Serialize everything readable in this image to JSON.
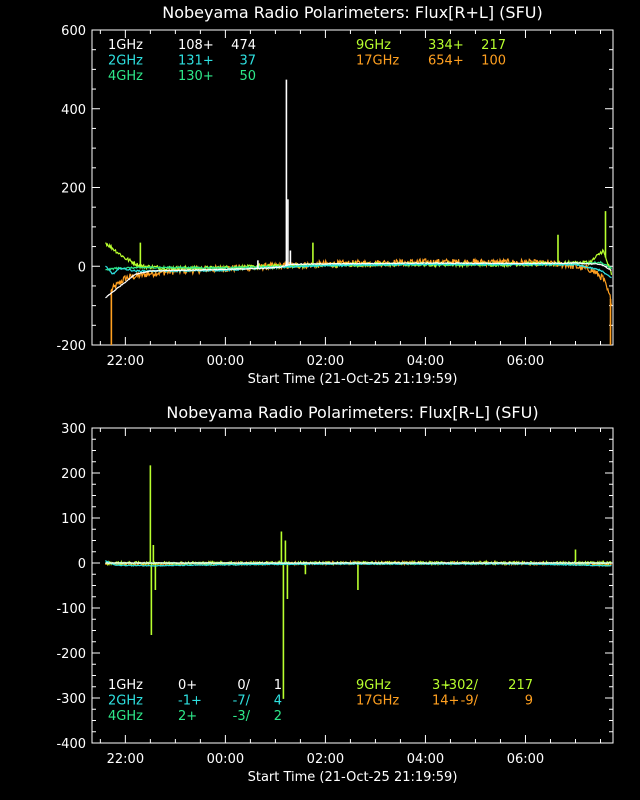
{
  "chart_data": [
    {
      "type": "line",
      "title": "Nobeyama Radio Polarimeters: Flux[R+L] (SFU)",
      "xlabel": "Start Time (21-Oct-25 21:19:59)",
      "ylabel": "",
      "ylim": [
        -200,
        600
      ],
      "yticks": [
        {
          "v": -200,
          "label": "-200"
        },
        {
          "v": 0,
          "label": "0"
        },
        {
          "v": 200,
          "label": "200"
        },
        {
          "v": 400,
          "label": "400"
        },
        {
          "v": 600,
          "label": "600"
        }
      ],
      "xlim_hours": [
        21.333,
        31.75
      ],
      "xticks": [
        {
          "h": 22,
          "label": "22:00"
        },
        {
          "h": 24,
          "label": "00:00"
        },
        {
          "h": 26,
          "label": "02:00"
        },
        {
          "h": 28,
          "label": "04:00"
        },
        {
          "h": 30,
          "label": "06:00"
        }
      ],
      "legend_rows": [
        {
          "row": 0,
          "items": [
            {
              "band": "1GHz",
              "base": "108+",
              "peak": "474",
              "color": "#ffffff",
              "col": "left"
            },
            {
              "band": "9GHz",
              "base": "334+",
              "peak": "217",
              "color": "#b8ff2e",
              "col": "right"
            }
          ]
        },
        {
          "row": 1,
          "items": [
            {
              "band": "2GHz",
              "base": "131+",
              "peak": "37",
              "color": "#2ee0e0",
              "col": "left"
            },
            {
              "band": "17GHz",
              "base": "654+",
              "peak": "100",
              "color": "#ffa020",
              "col": "right"
            }
          ]
        },
        {
          "row": 2,
          "items": [
            {
              "band": "4GHz",
              "base": "130+",
              "peak": "50",
              "color": "#2ee88a",
              "col": "left"
            }
          ]
        }
      ],
      "series": [
        {
          "name": "17GHz",
          "color": "#ffa020",
          "noise": 9,
          "points": [
            [
              21.72,
              -60
            ],
            [
              22.0,
              -30
            ],
            [
              22.5,
              -18
            ],
            [
              23.0,
              -12
            ],
            [
              24.0,
              -6
            ],
            [
              25.0,
              0
            ],
            [
              26.0,
              5
            ],
            [
              27.0,
              8
            ],
            [
              28.0,
              10
            ],
            [
              29.0,
              10
            ],
            [
              30.0,
              9
            ],
            [
              30.8,
              4
            ],
            [
              31.3,
              -8
            ],
            [
              31.55,
              -30
            ],
            [
              31.72,
              -90
            ]
          ],
          "spikes": [
            [
              21.72,
              -210
            ],
            [
              31.7,
              -210
            ]
          ]
        },
        {
          "name": "9GHz",
          "color": "#b8ff2e",
          "noise": 5,
          "points": [
            [
              21.6,
              60
            ],
            [
              21.8,
              40
            ],
            [
              22.0,
              20
            ],
            [
              22.3,
              0
            ],
            [
              22.8,
              -4
            ],
            [
              23.5,
              -5
            ],
            [
              24.5,
              -2
            ],
            [
              25.5,
              2
            ],
            [
              26.5,
              4
            ],
            [
              27.5,
              5
            ],
            [
              28.5,
              5
            ],
            [
              29.5,
              5
            ],
            [
              30.5,
              6
            ],
            [
              31.3,
              10
            ],
            [
              31.55,
              40
            ],
            [
              31.72,
              -20
            ]
          ],
          "spikes": [
            [
              22.3,
              60
            ],
            [
              30.65,
              80
            ],
            [
              31.6,
              140
            ],
            [
              25.75,
              60
            ]
          ]
        },
        {
          "name": "4GHz",
          "color": "#2ee88a",
          "noise": 2,
          "points": [
            [
              21.6,
              -10
            ],
            [
              21.8,
              -5
            ],
            [
              22.5,
              -3
            ],
            [
              24.0,
              -4
            ],
            [
              25.0,
              -1
            ],
            [
              26.0,
              2
            ],
            [
              27.0,
              3
            ],
            [
              28.0,
              4
            ],
            [
              29.0,
              4
            ],
            [
              30.0,
              4
            ],
            [
              31.0,
              6
            ],
            [
              31.5,
              10
            ],
            [
              31.72,
              -5
            ]
          ],
          "spikes": []
        },
        {
          "name": "2GHz",
          "color": "#2ee0e0",
          "noise": 2,
          "points": [
            [
              21.6,
              0
            ],
            [
              21.75,
              -20
            ],
            [
              21.9,
              -5
            ],
            [
              22.2,
              -12
            ],
            [
              23.0,
              -12
            ],
            [
              24.0,
              -10
            ],
            [
              25.0,
              -3
            ],
            [
              26.0,
              2
            ],
            [
              27.0,
              4
            ],
            [
              28.0,
              5
            ],
            [
              29.0,
              5
            ],
            [
              30.0,
              5
            ],
            [
              31.0,
              4
            ],
            [
              31.5,
              -10
            ],
            [
              31.72,
              -30
            ]
          ],
          "spikes": []
        },
        {
          "name": "1GHz",
          "color": "#ffffff",
          "noise": 1,
          "points": [
            [
              21.6,
              -80
            ],
            [
              21.8,
              -60
            ],
            [
              22.0,
              -40
            ],
            [
              22.2,
              -20
            ],
            [
              22.5,
              -12
            ],
            [
              24.0,
              -8
            ],
            [
              24.8,
              -5
            ],
            [
              25.1,
              -2
            ],
            [
              25.3,
              5
            ],
            [
              26.0,
              6
            ],
            [
              28.0,
              8
            ],
            [
              30.0,
              7
            ],
            [
              31.0,
              8
            ],
            [
              31.5,
              5
            ],
            [
              31.72,
              -10
            ]
          ],
          "spikes": [
            [
              24.65,
              15
            ],
            [
              25.22,
              474
            ],
            [
              25.25,
              170
            ],
            [
              25.3,
              40
            ]
          ]
        }
      ]
    },
    {
      "type": "line",
      "title": "Nobeyama Radio Polarimeters: Flux[R-L] (SFU)",
      "xlabel": "Start Time (21-Oct-25 21:19:59)",
      "ylabel": "",
      "ylim": [
        -400,
        300
      ],
      "yticks": [
        {
          "v": -400,
          "label": "-400"
        },
        {
          "v": -300,
          "label": "-300"
        },
        {
          "v": -200,
          "label": "-200"
        },
        {
          "v": -100,
          "label": "-100"
        },
        {
          "v": 0,
          "label": "0"
        },
        {
          "v": 100,
          "label": "100"
        },
        {
          "v": 200,
          "label": "200"
        },
        {
          "v": 300,
          "label": "300"
        }
      ],
      "xlim_hours": [
        21.333,
        31.75
      ],
      "xticks": [
        {
          "h": 22,
          "label": "22:00"
        },
        {
          "h": 24,
          "label": "00:00"
        },
        {
          "h": 26,
          "label": "02:00"
        },
        {
          "h": 28,
          "label": "04:00"
        },
        {
          "h": 30,
          "label": "06:00"
        }
      ],
      "legend_rows": [
        {
          "row": 0,
          "items": [
            {
              "band": "1GHz",
              "base": "0+",
              "mid": "0/",
              "peak": "1",
              "color": "#ffffff",
              "col": "left"
            },
            {
              "band": "9GHz",
              "base": "3+",
              "mid": "-302/",
              "peak": "217",
              "color": "#b8ff2e",
              "col": "right"
            }
          ]
        },
        {
          "row": 1,
          "items": [
            {
              "band": "2GHz",
              "base": "-1+",
              "mid": "-7/",
              "peak": "4",
              "color": "#2ee0e0",
              "col": "left"
            },
            {
              "band": "17GHz",
              "base": "14+",
              "mid": "-9/",
              "peak": "9",
              "color": "#ffa020",
              "col": "right"
            }
          ]
        },
        {
          "row": 2,
          "items": [
            {
              "band": "4GHz",
              "base": "2+",
              "mid": "-3/",
              "peak": "2",
              "color": "#2ee88a",
              "col": "left"
            }
          ]
        }
      ],
      "series": [
        {
          "name": "17GHz",
          "color": "#ffa020",
          "noise": 3,
          "points": [
            [
              21.6,
              -2
            ],
            [
              23.0,
              -2
            ],
            [
              25.0,
              -1
            ],
            [
              27.0,
              0
            ],
            [
              29.0,
              0
            ],
            [
              31.0,
              -2
            ],
            [
              31.72,
              -4
            ]
          ],
          "spikes": []
        },
        {
          "name": "9GHz",
          "color": "#b8ff2e",
          "noise": 3,
          "points": [
            [
              21.6,
              0
            ],
            [
              23.0,
              0
            ],
            [
              25.0,
              0
            ],
            [
              27.0,
              0
            ],
            [
              29.0,
              0
            ],
            [
              31.0,
              0
            ],
            [
              31.72,
              0
            ]
          ],
          "spikes": [
            [
              22.5,
              217
            ],
            [
              22.52,
              -160
            ],
            [
              22.56,
              40
            ],
            [
              22.6,
              -60
            ],
            [
              25.12,
              70
            ],
            [
              25.16,
              -302
            ],
            [
              25.2,
              50
            ],
            [
              25.24,
              -80
            ],
            [
              26.65,
              -60
            ],
            [
              25.6,
              -25
            ],
            [
              31.0,
              30
            ]
          ]
        },
        {
          "name": "4GHz",
          "color": "#2ee88a",
          "noise": 1,
          "points": [
            [
              21.6,
              0
            ],
            [
              25.0,
              0
            ],
            [
              28.0,
              0
            ],
            [
              31.0,
              0
            ],
            [
              31.72,
              0
            ]
          ],
          "spikes": []
        },
        {
          "name": "2GHz",
          "color": "#2ee0e0",
          "noise": 1,
          "points": [
            [
              21.6,
              5
            ],
            [
              21.8,
              -5
            ],
            [
              22.5,
              -6
            ],
            [
              24.0,
              -4
            ],
            [
              26.0,
              -2
            ],
            [
              28.0,
              -2
            ],
            [
              30.0,
              -2
            ],
            [
              31.72,
              -6
            ]
          ],
          "spikes": []
        },
        {
          "name": "1GHz",
          "color": "#ffffff",
          "noise": 0.5,
          "points": [
            [
              21.6,
              0
            ],
            [
              25.0,
              0
            ],
            [
              28.0,
              0
            ],
            [
              31.72,
              0
            ]
          ],
          "spikes": []
        }
      ]
    }
  ]
}
